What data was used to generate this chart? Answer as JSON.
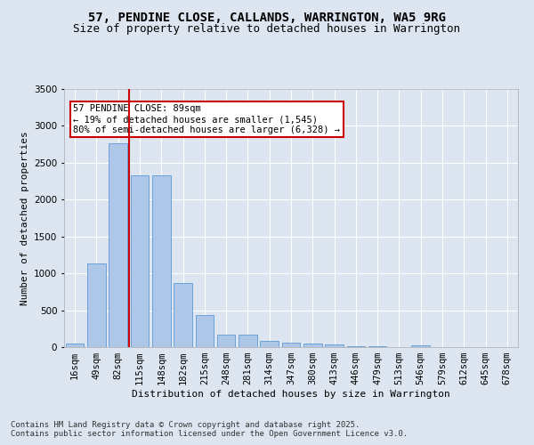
{
  "title": "57, PENDINE CLOSE, CALLANDS, WARRINGTON, WA5 9RG",
  "subtitle": "Size of property relative to detached houses in Warrington",
  "xlabel": "Distribution of detached houses by size in Warrington",
  "ylabel": "Number of detached properties",
  "categories": [
    "16sqm",
    "49sqm",
    "82sqm",
    "115sqm",
    "148sqm",
    "182sqm",
    "215sqm",
    "248sqm",
    "281sqm",
    "314sqm",
    "347sqm",
    "380sqm",
    "413sqm",
    "446sqm",
    "479sqm",
    "513sqm",
    "546sqm",
    "579sqm",
    "612sqm",
    "645sqm",
    "678sqm"
  ],
  "values": [
    50,
    1130,
    2760,
    2330,
    2330,
    870,
    440,
    170,
    165,
    90,
    60,
    45,
    40,
    10,
    10,
    5,
    25,
    5,
    0,
    0,
    0
  ],
  "bar_color": "#aec6e8",
  "bar_edge_color": "#5b9bd5",
  "vline_x_index": 2,
  "vline_color": "#cc0000",
  "annotation_text": "57 PENDINE CLOSE: 89sqm\n← 19% of detached houses are smaller (1,545)\n80% of semi-detached houses are larger (6,328) →",
  "annotation_box_color": "#ffffff",
  "annotation_box_edge": "#cc0000",
  "background_color": "#dde5f0",
  "plot_bg_color": "#dde5f0",
  "grid_color": "#ffffff",
  "footer_text": "Contains HM Land Registry data © Crown copyright and database right 2025.\nContains public sector information licensed under the Open Government Licence v3.0.",
  "ylim": [
    0,
    3500
  ],
  "title_fontsize": 10,
  "subtitle_fontsize": 9,
  "axis_label_fontsize": 8,
  "tick_fontsize": 7.5,
  "annotation_fontsize": 7.5,
  "footer_fontsize": 6.5
}
